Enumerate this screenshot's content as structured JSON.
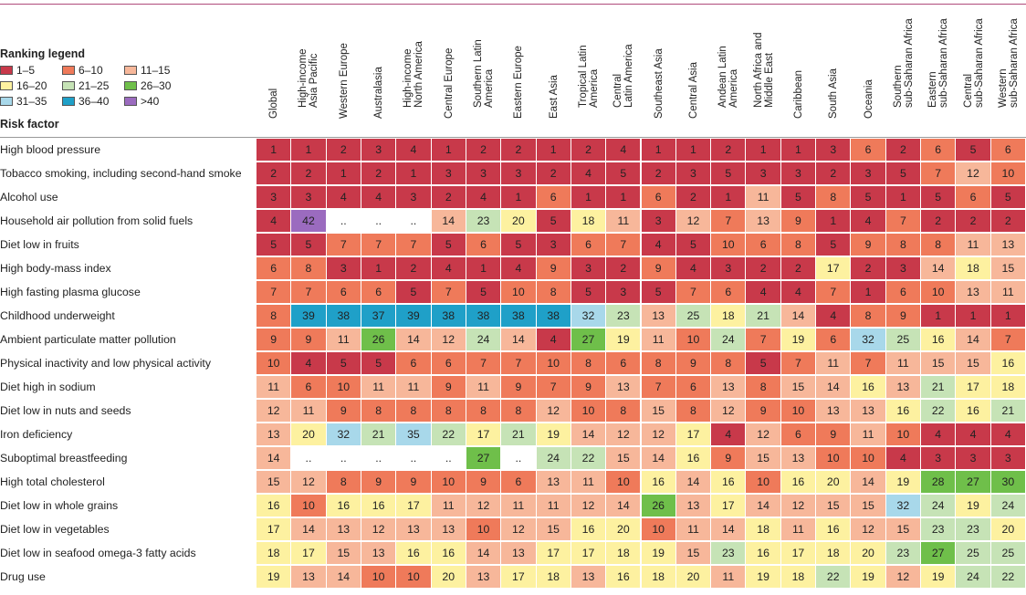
{
  "chart_data": {
    "type": "table",
    "title": "Ranking legend",
    "row_header": "Risk factor",
    "legend": [
      {
        "label": "1–5",
        "color": "#c8394a"
      },
      {
        "label": "6–10",
        "color": "#ef7a5a"
      },
      {
        "label": "11–15",
        "color": "#f7b79a"
      },
      {
        "label": "16–20",
        "color": "#fdf1a0"
      },
      {
        "label": "21–25",
        "color": "#c6e3b6"
      },
      {
        "label": "26–30",
        "color": "#6fbf4a"
      },
      {
        "label": "31–35",
        "color": "#a8d8ea"
      },
      {
        "label": "36–40",
        "color": "#1fa0c8"
      },
      {
        "label": ">40",
        "color": "#9b6bbf"
      }
    ],
    "columns": [
      "Global",
      "High-income\nAsia Pacific",
      "Western Europe",
      "Australasia",
      "High-income\nNorth America",
      "Central Europe",
      "Southern Latin\nAmerica",
      "Eastern Europe",
      "East Asia",
      "Tropical Latin\nAmerica",
      "Central\nLatin America",
      "Southeast Asia",
      "Central Asia",
      "Andean Latin\nAmerica",
      "North Africa and\nMiddle East",
      "Caribbean",
      "South Asia",
      "Oceania",
      "Southern\nsub-Saharan Africa",
      "Eastern\nsub-Saharan Africa",
      "Central\nsub-Saharan Africa",
      "Western\nsub-Saharan Africa"
    ],
    "rows": [
      {
        "label": "High blood pressure",
        "values": [
          "1",
          "1",
          "2",
          "3",
          "4",
          "1",
          "2",
          "2",
          "1",
          "2",
          "4",
          "1",
          "1",
          "2",
          "1",
          "1",
          "3",
          "6",
          "2",
          "6",
          "5",
          "6"
        ]
      },
      {
        "label": "Tobacco smoking, including second-hand smoke",
        "values": [
          "2",
          "2",
          "1",
          "2",
          "1",
          "3",
          "3",
          "3",
          "2",
          "4",
          "5",
          "2",
          "3",
          "5",
          "3",
          "3",
          "2",
          "3",
          "5",
          "7",
          "12",
          "10"
        ]
      },
      {
        "label": "Alcohol use",
        "values": [
          "3",
          "3",
          "4",
          "4",
          "3",
          "2",
          "4",
          "1",
          "6",
          "1",
          "1",
          "6",
          "2",
          "1",
          "11",
          "5",
          "8",
          "5",
          "1",
          "5",
          "6",
          "5"
        ]
      },
      {
        "label": "Household air pollution from solid fuels",
        "values": [
          "4",
          "42",
          "..",
          "..",
          "..",
          "14",
          "23",
          "20",
          "5",
          "18",
          "11",
          "3",
          "12",
          "7",
          "13",
          "9",
          "1",
          "4",
          "7",
          "2",
          "2",
          "2"
        ]
      },
      {
        "label": "Diet low in fruits",
        "values": [
          "5",
          "5",
          "7",
          "7",
          "7",
          "5",
          "6",
          "5",
          "3",
          "6",
          "7",
          "4",
          "5",
          "10",
          "6",
          "8",
          "5",
          "9",
          "8",
          "8",
          "11",
          "13"
        ]
      },
      {
        "label": "High body-mass index",
        "values": [
          "6",
          "8",
          "3",
          "1",
          "2",
          "4",
          "1",
          "4",
          "9",
          "3",
          "2",
          "9",
          "4",
          "3",
          "2",
          "2",
          "17",
          "2",
          "3",
          "14",
          "18",
          "15"
        ]
      },
      {
        "label": "High fasting plasma glucose",
        "values": [
          "7",
          "7",
          "6",
          "6",
          "5",
          "7",
          "5",
          "10",
          "8",
          "5",
          "3",
          "5",
          "7",
          "6",
          "4",
          "4",
          "7",
          "1",
          "6",
          "10",
          "13",
          "11"
        ]
      },
      {
        "label": "Childhood underweight",
        "values": [
          "8",
          "39",
          "38",
          "37",
          "39",
          "38",
          "38",
          "38",
          "38",
          "32",
          "23",
          "13",
          "25",
          "18",
          "21",
          "14",
          "4",
          "8",
          "9",
          "1",
          "1",
          "1"
        ]
      },
      {
        "label": "Ambient particulate matter pollution",
        "values": [
          "9",
          "9",
          "11",
          "26",
          "14",
          "12",
          "24",
          "14",
          "4",
          "27",
          "19",
          "11",
          "10",
          "24",
          "7",
          "19",
          "6",
          "32",
          "25",
          "16",
          "14",
          "7"
        ]
      },
      {
        "label": "Physical inactivity and low physical activity",
        "values": [
          "10",
          "4",
          "5",
          "5",
          "6",
          "6",
          "7",
          "7",
          "10",
          "8",
          "6",
          "8",
          "9",
          "8",
          "5",
          "7",
          "11",
          "7",
          "11",
          "15",
          "15",
          "16"
        ]
      },
      {
        "label": "Diet high in sodium",
        "values": [
          "11",
          "6",
          "10",
          "11",
          "11",
          "9",
          "11",
          "9",
          "7",
          "9",
          "13",
          "7",
          "6",
          "13",
          "8",
          "15",
          "14",
          "16",
          "13",
          "21",
          "17",
          "18"
        ]
      },
      {
        "label": "Diet low in nuts and seeds",
        "values": [
          "12",
          "11",
          "9",
          "8",
          "8",
          "8",
          "8",
          "8",
          "12",
          "10",
          "8",
          "15",
          "8",
          "12",
          "9",
          "10",
          "13",
          "13",
          "16",
          "22",
          "16",
          "21"
        ]
      },
      {
        "label": "Iron deficiency",
        "values": [
          "13",
          "20",
          "32",
          "21",
          "35",
          "22",
          "17",
          "21",
          "19",
          "14",
          "12",
          "12",
          "17",
          "4",
          "12",
          "6",
          "9",
          "11",
          "10",
          "4",
          "4",
          "4"
        ]
      },
      {
        "label": "Suboptimal breastfeeding",
        "values": [
          "14",
          "..",
          "..",
          "..",
          "..",
          "..",
          "27",
          "..",
          "24",
          "22",
          "15",
          "14",
          "16",
          "9",
          "15",
          "13",
          "10",
          "10",
          "4",
          "3",
          "3",
          "3"
        ]
      },
      {
        "label": "High total cholesterol",
        "values": [
          "15",
          "12",
          "8",
          "9",
          "9",
          "10",
          "9",
          "6",
          "13",
          "11",
          "10",
          "16",
          "14",
          "16",
          "10",
          "16",
          "20",
          "14",
          "19",
          "28",
          "27",
          "30"
        ]
      },
      {
        "label": "Diet low in whole grains",
        "values": [
          "16",
          "10",
          "16",
          "16",
          "17",
          "11",
          "12",
          "11",
          "11",
          "12",
          "14",
          "26",
          "13",
          "17",
          "14",
          "12",
          "15",
          "15",
          "32",
          "24",
          "19",
          "24"
        ]
      },
      {
        "label": "Diet low in vegetables",
        "values": [
          "17",
          "14",
          "13",
          "12",
          "13",
          "13",
          "10",
          "12",
          "15",
          "16",
          "20",
          "10",
          "11",
          "14",
          "18",
          "11",
          "16",
          "12",
          "15",
          "23",
          "23",
          "20"
        ]
      },
      {
        "label": "Diet low in seafood omega-3 fatty acids",
        "values": [
          "18",
          "17",
          "15",
          "13",
          "16",
          "16",
          "14",
          "13",
          "17",
          "17",
          "18",
          "19",
          "15",
          "23",
          "16",
          "17",
          "18",
          "20",
          "23",
          "27",
          "25",
          "25"
        ]
      },
      {
        "label": "Drug use",
        "values": [
          "19",
          "13",
          "14",
          "10",
          "10",
          "20",
          "13",
          "17",
          "18",
          "13",
          "16",
          "18",
          "20",
          "11",
          "19",
          "18",
          "22",
          "19",
          "12",
          "19",
          "24",
          "22"
        ]
      }
    ]
  }
}
